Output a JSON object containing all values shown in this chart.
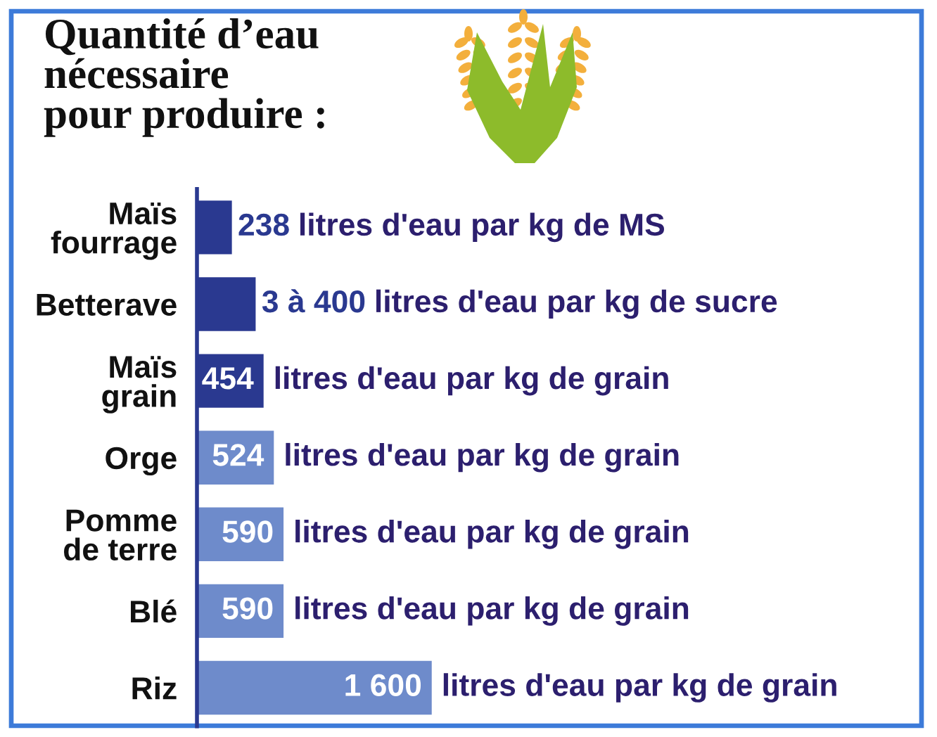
{
  "chart_data": {
    "type": "bar",
    "orientation": "horizontal",
    "title": "Quantité d’eau\nnécessaire\npour produire :",
    "categories": [
      "Maïs\nfourrage",
      "Betterave",
      "Maïs\ngrain",
      "Orge",
      "Pomme\nde terre",
      "Blé",
      "Riz"
    ],
    "values": [
      238,
      400,
      454,
      524,
      590,
      590,
      1600
    ],
    "colors": [
      "#2a3990",
      "#2a3990",
      "#2a3990",
      "#6e8bcb",
      "#6e8bcb",
      "#6e8bcb",
      "#6e8bcb"
    ],
    "value_labels": [
      "238",
      "3 à 400",
      "454",
      "524",
      "590",
      "590",
      "1 600"
    ],
    "annotations": [
      "litres d'eau par kg de MS",
      "litres d'eau par kg de sucre",
      "litres d'eau par kg de grain",
      "litres d'eau par kg de grain",
      "litres d'eau par kg de grain",
      "litres d'eau par kg de grain",
      "litres d'eau par kg de grain"
    ],
    "tick_labels": "y"
  }
}
